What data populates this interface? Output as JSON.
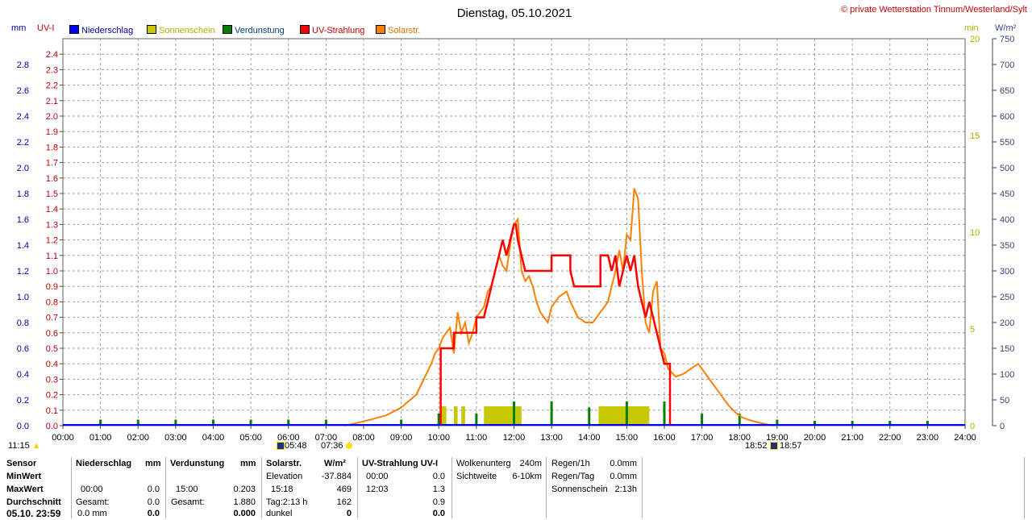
{
  "header": {
    "title": "Dienstag, 05.10.2021",
    "copyright": "© private Wetterstation Tinnum/Westerland/Sylt",
    "unit_mm": "mm",
    "unit_uvi": "UV-I",
    "unit_min": "min",
    "unit_wm2": "W/m²"
  },
  "legend": [
    {
      "label": "Niederschlag",
      "color": "#0000ff",
      "text_color": "#0000a0"
    },
    {
      "label": "Sonnenschein",
      "color": "#c8c800",
      "text_color": "#b0b000"
    },
    {
      "label": "Verdunstung",
      "color": "#008000",
      "text_color": "#004080"
    },
    {
      "label": "UV-Strahlung",
      "color": "#ff0000",
      "text_color": "#c00000"
    },
    {
      "label": "Solarstr.",
      "color": "#ff8000",
      "text_color": "#e07000"
    }
  ],
  "colors": {
    "uv": "#ff0000",
    "solar": "#ff8000",
    "sun": "#c8c800",
    "evap": "#008000",
    "grid": "#a0a0a0"
  },
  "chart_data": {
    "type": "line",
    "x_ticks": [
      "00:00",
      "01:00",
      "02:00",
      "03:00",
      "04:00",
      "05:00",
      "06:00",
      "07:00",
      "08:00",
      "09:00",
      "10:00",
      "11:00",
      "12:00",
      "13:00",
      "14:00",
      "15:00",
      "16:00",
      "17:00",
      "18:00",
      "19:00",
      "20:00",
      "21:00",
      "22:00",
      "23:00",
      "24:00"
    ],
    "axes": {
      "mm": {
        "range": [
          0,
          3.0
        ],
        "ticks": [
          "0.0",
          "0.2",
          "0.4",
          "0.6",
          "0.8",
          "1.0",
          "1.2",
          "1.4",
          "1.6",
          "1.8",
          "2.0",
          "2.2",
          "2.4",
          "2.6",
          "2.8"
        ]
      },
      "uvi": {
        "range": [
          0,
          2.5
        ],
        "ticks": [
          "0.0",
          "0.1",
          "0.2",
          "0.3",
          "0.4",
          "0.5",
          "0.6",
          "0.7",
          "0.8",
          "0.9",
          "1.0",
          "1.1",
          "1.2",
          "1.3",
          "1.4",
          "1.5",
          "1.6",
          "1.7",
          "1.8",
          "1.9",
          "2.0",
          "2.1",
          "2.2",
          "2.3",
          "2.4"
        ]
      },
      "min": {
        "range": [
          0,
          20
        ],
        "ticks": [
          "0",
          "5",
          "10",
          "15",
          "20"
        ]
      },
      "wm2": {
        "range": [
          0,
          750
        ],
        "ticks": [
          "0",
          "50",
          "100",
          "150",
          "200",
          "250",
          "300",
          "350",
          "400",
          "450",
          "500",
          "550",
          "600",
          "650",
          "700",
          "750"
        ]
      }
    },
    "series": [
      {
        "name": "Solarstr.",
        "unit": "W/m²",
        "points": [
          [
            7.5,
            0
          ],
          [
            7.8,
            5
          ],
          [
            8.2,
            12
          ],
          [
            8.6,
            20
          ],
          [
            9.0,
            35
          ],
          [
            9.4,
            60
          ],
          [
            9.6,
            90
          ],
          [
            9.8,
            120
          ],
          [
            9.9,
            140
          ],
          [
            10.0,
            150
          ],
          [
            10.1,
            170
          ],
          [
            10.3,
            190
          ],
          [
            10.4,
            140
          ],
          [
            10.5,
            220
          ],
          [
            10.6,
            180
          ],
          [
            10.7,
            200
          ],
          [
            10.8,
            160
          ],
          [
            10.9,
            180
          ],
          [
            11.0,
            210
          ],
          [
            11.2,
            230
          ],
          [
            11.3,
            260
          ],
          [
            11.4,
            270
          ],
          [
            11.5,
            300
          ],
          [
            11.6,
            330
          ],
          [
            11.7,
            310
          ],
          [
            11.8,
            300
          ],
          [
            11.9,
            350
          ],
          [
            12.0,
            390
          ],
          [
            12.1,
            400
          ],
          [
            12.2,
            300
          ],
          [
            12.3,
            280
          ],
          [
            12.4,
            290
          ],
          [
            12.5,
            270
          ],
          [
            12.6,
            240
          ],
          [
            12.7,
            220
          ],
          [
            12.8,
            210
          ],
          [
            12.9,
            200
          ],
          [
            13.0,
            230
          ],
          [
            13.2,
            250
          ],
          [
            13.4,
            260
          ],
          [
            13.5,
            240
          ],
          [
            13.7,
            210
          ],
          [
            13.9,
            200
          ],
          [
            14.1,
            200
          ],
          [
            14.3,
            220
          ],
          [
            14.5,
            240
          ],
          [
            14.6,
            270
          ],
          [
            14.7,
            300
          ],
          [
            14.8,
            340
          ],
          [
            14.9,
            300
          ],
          [
            15.0,
            370
          ],
          [
            15.1,
            360
          ],
          [
            15.2,
            460
          ],
          [
            15.3,
            440
          ],
          [
            15.4,
            300
          ],
          [
            15.5,
            200
          ],
          [
            15.6,
            180
          ],
          [
            15.7,
            260
          ],
          [
            15.8,
            280
          ],
          [
            15.9,
            150
          ],
          [
            16.0,
            140
          ],
          [
            16.1,
            110
          ],
          [
            16.3,
            95
          ],
          [
            16.5,
            100
          ],
          [
            16.7,
            110
          ],
          [
            16.9,
            120
          ],
          [
            17.1,
            100
          ],
          [
            17.3,
            80
          ],
          [
            17.5,
            60
          ],
          [
            17.7,
            40
          ],
          [
            17.9,
            25
          ],
          [
            18.1,
            15
          ],
          [
            18.4,
            8
          ],
          [
            18.7,
            3
          ],
          [
            18.9,
            0
          ]
        ]
      },
      {
        "name": "UV-Strahlung",
        "unit": "UV-I",
        "points": [
          [
            10.05,
            0
          ],
          [
            10.05,
            0.5
          ],
          [
            10.4,
            0.5
          ],
          [
            10.4,
            0.6
          ],
          [
            11.0,
            0.6
          ],
          [
            11.0,
            0.7
          ],
          [
            11.2,
            0.7
          ],
          [
            11.3,
            0.8
          ],
          [
            11.4,
            0.9
          ],
          [
            11.5,
            1.0
          ],
          [
            11.6,
            1.1
          ],
          [
            11.7,
            1.2
          ],
          [
            11.8,
            1.1
          ],
          [
            11.9,
            1.2
          ],
          [
            12.0,
            1.3
          ],
          [
            12.05,
            1.3
          ],
          [
            12.1,
            1.2
          ],
          [
            12.2,
            1.1
          ],
          [
            12.3,
            1.0
          ],
          [
            13.0,
            1.0
          ],
          [
            13.0,
            1.1
          ],
          [
            13.5,
            1.1
          ],
          [
            13.5,
            1.0
          ],
          [
            13.6,
            0.9
          ],
          [
            14.3,
            0.9
          ],
          [
            14.3,
            1.1
          ],
          [
            14.5,
            1.1
          ],
          [
            14.6,
            1.0
          ],
          [
            14.7,
            1.1
          ],
          [
            14.8,
            0.9
          ],
          [
            14.9,
            1.0
          ],
          [
            15.0,
            1.1
          ],
          [
            15.1,
            1.0
          ],
          [
            15.2,
            1.1
          ],
          [
            15.3,
            0.9
          ],
          [
            15.4,
            0.8
          ],
          [
            15.5,
            0.7
          ],
          [
            15.6,
            0.8
          ],
          [
            15.7,
            0.7
          ],
          [
            15.8,
            0.6
          ],
          [
            15.9,
            0.5
          ],
          [
            16.0,
            0.4
          ],
          [
            16.15,
            0.4
          ],
          [
            16.15,
            0
          ]
        ]
      },
      {
        "name": "Sonnenschein",
        "unit": "min",
        "bars": [
          [
            10.05,
            10.2
          ],
          [
            10.4,
            10.5
          ],
          [
            10.6,
            10.7
          ],
          [
            11.2,
            12.2
          ],
          [
            14.25,
            15.6
          ]
        ],
        "value": 1.0
      },
      {
        "name": "Verdunstung",
        "unit": "mm",
        "spikes": [
          [
            1.0,
            0.05
          ],
          [
            2.0,
            0.05
          ],
          [
            3.0,
            0.05
          ],
          [
            4.0,
            0.05
          ],
          [
            5.0,
            0.05
          ],
          [
            6.0,
            0.05
          ],
          [
            7.0,
            0.05
          ],
          [
            9.0,
            0.05
          ],
          [
            10.0,
            0.1
          ],
          [
            11.0,
            0.1
          ],
          [
            12.0,
            0.2
          ],
          [
            13.0,
            0.2
          ],
          [
            14.0,
            0.15
          ],
          [
            15.0,
            0.2
          ],
          [
            16.0,
            0.2
          ],
          [
            17.0,
            0.1
          ],
          [
            18.0,
            0.1
          ],
          [
            19.0,
            0.05
          ],
          [
            20.0,
            0.03
          ],
          [
            21.0,
            0.03
          ],
          [
            22.0,
            0.03
          ],
          [
            23.0,
            0.03
          ]
        ]
      }
    ]
  },
  "markers": {
    "time_now": "11:15",
    "sunrise_astro": "05:48",
    "sunrise": "07:36",
    "sunset": "18:52",
    "sunset_astro": "18:57"
  },
  "table": {
    "sensor_col": {
      "h": "Sensor",
      "min": "MinWert",
      "max": "MaxWert",
      "avg": "Durchschnitt",
      "date": "05.10. 23:59"
    },
    "niederschlag": {
      "h": "Niederschlag",
      "unit": "mm",
      "max_time": "00:00",
      "max_val": "0.0",
      "gesamt_lbl": "Gesamt:",
      "gesamt_val": "0.0",
      "last": "0.0 mm",
      "last2": "0.0"
    },
    "verdunstung": {
      "h": "Verdunstung",
      "unit": "mm",
      "max_time": "15:00",
      "max_val": "0.203",
      "gesamt_lbl": "Gesamt:",
      "gesamt_val": "1.880",
      "last": "0.000"
    },
    "solar": {
      "h": "Solarstr.",
      "unit": "W/m²",
      "elev_lbl": "Elevation",
      "elev_val": "-37.884",
      "max_time": "15:18",
      "max_val": "469",
      "tag_lbl": "Tag:2:13 h",
      "tag_val": "162",
      "dunkel_lbl": "dunkel",
      "dunkel_val": "0"
    },
    "uv": {
      "h": "UV-Strahlung UV-I",
      "min_time": "00:00",
      "min_val": "0.0",
      "max_time": "12:03",
      "max_val": "1.3",
      "avg_val": "0.9",
      "last": "0.0"
    },
    "wolken": {
      "wu_lbl": "Wolkenunterg",
      "wu_val": "240m",
      "sw_lbl": "Sichtweite",
      "sw_val": "6-10km"
    },
    "regen": {
      "r1_lbl": "Regen/1h",
      "r1_val": "0.0mm",
      "rt_lbl": "Regen/Tag",
      "rt_val": "0.0mm",
      "ss_lbl": "Sonnenschein",
      "ss_val": "2:13h"
    }
  }
}
